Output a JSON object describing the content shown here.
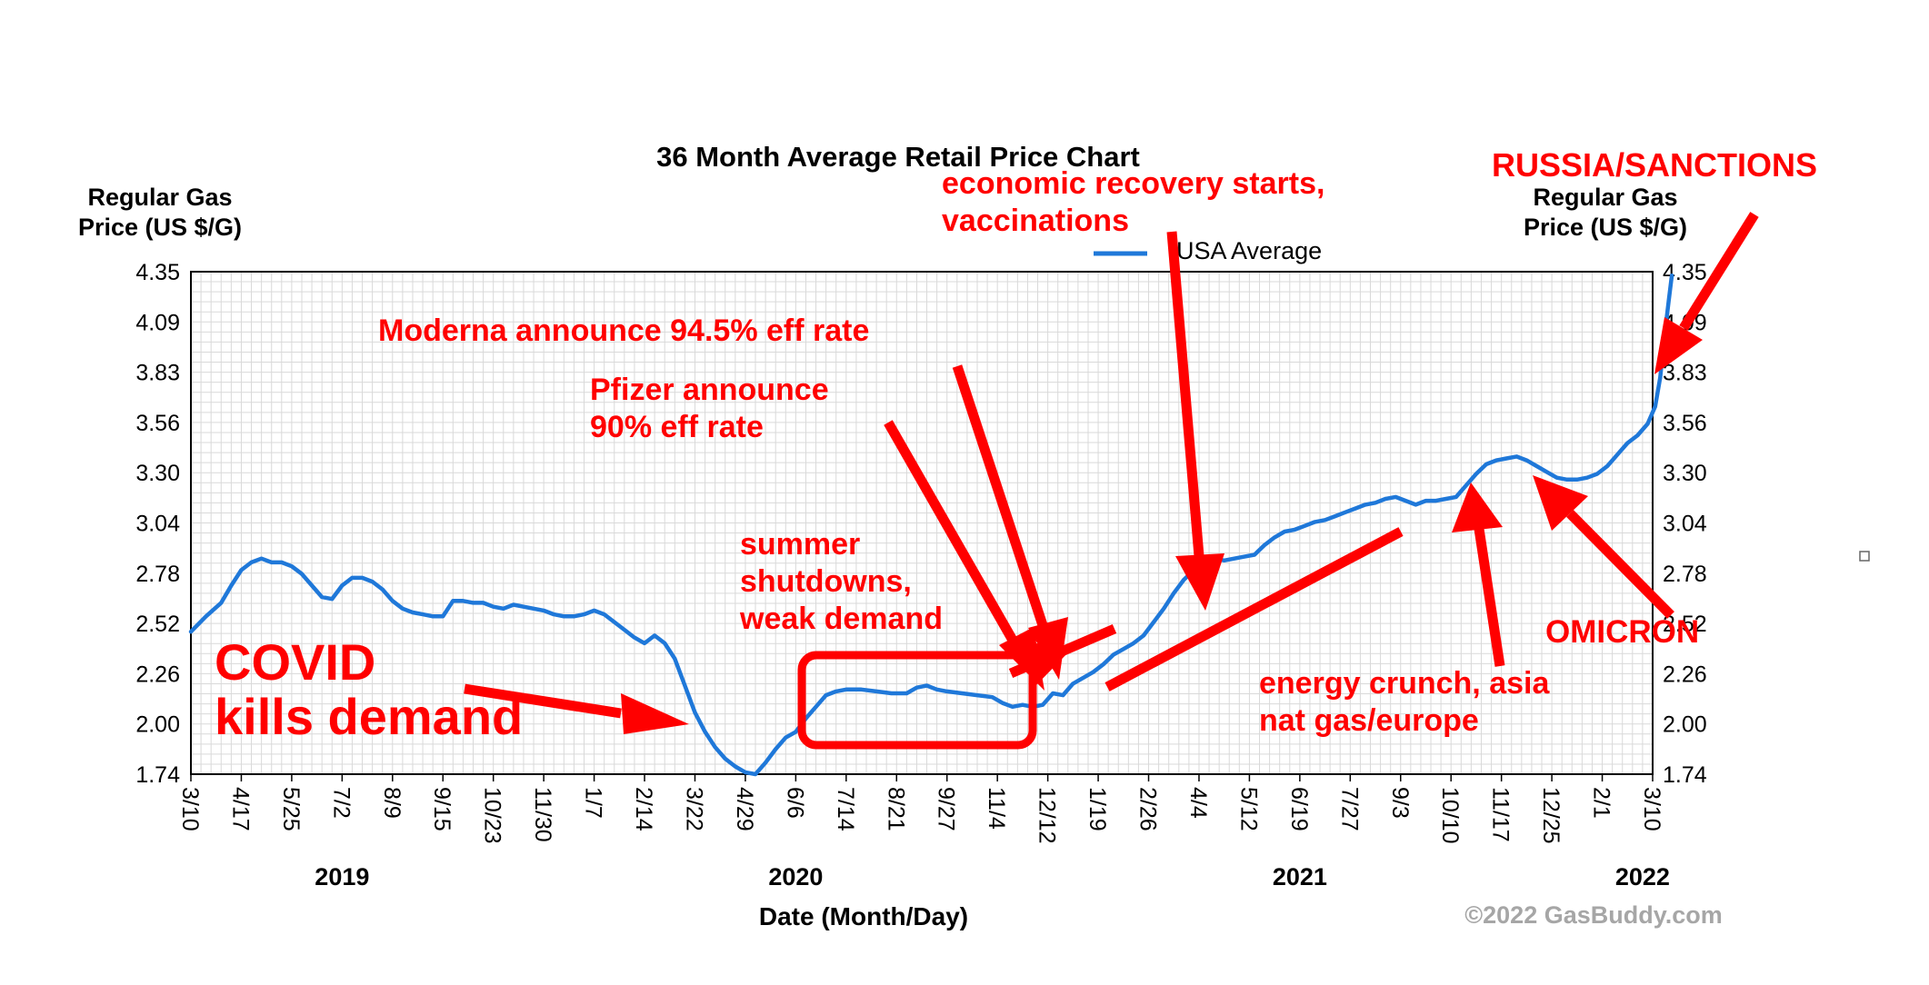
{
  "chart_data": {
    "type": "line",
    "title": "36 Month Average Retail Price Chart",
    "ylabel_left": [
      "Regular Gas",
      "Price (US $/G)"
    ],
    "ylabel_right": [
      "Regular Gas",
      "Price (US $/G)"
    ],
    "xlabel": "Date (Month/Day)",
    "ylim": [
      1.74,
      4.35
    ],
    "y_ticks": [
      "4.35",
      "4.09",
      "3.83",
      "3.56",
      "3.30",
      "3.04",
      "2.78",
      "2.52",
      "2.26",
      "2.00",
      "1.74"
    ],
    "x_ticks": [
      "3/10",
      "4/17",
      "5/25",
      "7/2",
      "8/9",
      "9/15",
      "10/23",
      "11/30",
      "1/7",
      "2/14",
      "3/22",
      "4/29",
      "6/6",
      "7/14",
      "8/21",
      "9/27",
      "11/4",
      "12/12",
      "1/19",
      "2/26",
      "4/4",
      "5/12",
      "6/19",
      "7/27",
      "9/3",
      "10/10",
      "11/17",
      "12/25",
      "2/1",
      "3/10"
    ],
    "years": [
      {
        "label": "2019",
        "tick_index": 3
      },
      {
        "label": "2020",
        "tick_index": 12
      },
      {
        "label": "2021",
        "tick_index": 22
      },
      {
        "label": "2022",
        "tick_index": 28.8
      }
    ],
    "legend": {
      "label": "USA Average",
      "color": "#1f78d9",
      "position": "top"
    },
    "grid": true,
    "series": [
      {
        "name": "USA Average",
        "color": "#1f78d9",
        "points": [
          [
            0,
            2.48
          ],
          [
            0.3,
            2.56
          ],
          [
            0.6,
            2.63
          ],
          [
            0.8,
            2.72
          ],
          [
            1.0,
            2.8
          ],
          [
            1.2,
            2.84
          ],
          [
            1.4,
            2.86
          ],
          [
            1.6,
            2.84
          ],
          [
            1.8,
            2.84
          ],
          [
            2.0,
            2.82
          ],
          [
            2.2,
            2.78
          ],
          [
            2.4,
            2.72
          ],
          [
            2.6,
            2.66
          ],
          [
            2.8,
            2.65
          ],
          [
            3.0,
            2.72
          ],
          [
            3.2,
            2.76
          ],
          [
            3.4,
            2.76
          ],
          [
            3.6,
            2.74
          ],
          [
            3.8,
            2.7
          ],
          [
            4.0,
            2.64
          ],
          [
            4.2,
            2.6
          ],
          [
            4.4,
            2.58
          ],
          [
            4.6,
            2.57
          ],
          [
            4.8,
            2.56
          ],
          [
            5.0,
            2.56
          ],
          [
            5.2,
            2.64
          ],
          [
            5.4,
            2.64
          ],
          [
            5.6,
            2.63
          ],
          [
            5.8,
            2.63
          ],
          [
            6.0,
            2.61
          ],
          [
            6.2,
            2.6
          ],
          [
            6.4,
            2.62
          ],
          [
            6.6,
            2.61
          ],
          [
            6.8,
            2.6
          ],
          [
            7.0,
            2.59
          ],
          [
            7.2,
            2.57
          ],
          [
            7.4,
            2.56
          ],
          [
            7.6,
            2.56
          ],
          [
            7.8,
            2.57
          ],
          [
            8.0,
            2.59
          ],
          [
            8.2,
            2.57
          ],
          [
            8.4,
            2.53
          ],
          [
            8.6,
            2.49
          ],
          [
            8.8,
            2.45
          ],
          [
            9.0,
            2.42
          ],
          [
            9.2,
            2.46
          ],
          [
            9.4,
            2.42
          ],
          [
            9.6,
            2.34
          ],
          [
            9.8,
            2.2
          ],
          [
            10.0,
            2.06
          ],
          [
            10.2,
            1.96
          ],
          [
            10.4,
            1.88
          ],
          [
            10.6,
            1.82
          ],
          [
            10.8,
            1.78
          ],
          [
            11.0,
            1.75
          ],
          [
            11.2,
            1.74
          ],
          [
            11.4,
            1.8
          ],
          [
            11.6,
            1.87
          ],
          [
            11.8,
            1.93
          ],
          [
            12.0,
            1.96
          ],
          [
            12.2,
            2.03
          ],
          [
            12.4,
            2.09
          ],
          [
            12.6,
            2.15
          ],
          [
            12.8,
            2.17
          ],
          [
            13.0,
            2.18
          ],
          [
            13.3,
            2.18
          ],
          [
            13.6,
            2.17
          ],
          [
            13.9,
            2.16
          ],
          [
            14.2,
            2.16
          ],
          [
            14.4,
            2.19
          ],
          [
            14.6,
            2.2
          ],
          [
            14.8,
            2.18
          ],
          [
            15.0,
            2.17
          ],
          [
            15.3,
            2.16
          ],
          [
            15.6,
            2.15
          ],
          [
            15.9,
            2.14
          ],
          [
            16.1,
            2.11
          ],
          [
            16.3,
            2.09
          ],
          [
            16.5,
            2.1
          ],
          [
            16.7,
            2.09
          ],
          [
            16.9,
            2.1
          ],
          [
            17.1,
            2.16
          ],
          [
            17.3,
            2.15
          ],
          [
            17.5,
            2.21
          ],
          [
            17.7,
            2.24
          ],
          [
            17.9,
            2.27
          ],
          [
            18.1,
            2.31
          ],
          [
            18.3,
            2.36
          ],
          [
            18.5,
            2.39
          ],
          [
            18.7,
            2.42
          ],
          [
            18.9,
            2.46
          ],
          [
            19.1,
            2.53
          ],
          [
            19.3,
            2.6
          ],
          [
            19.5,
            2.68
          ],
          [
            19.7,
            2.75
          ],
          [
            19.9,
            2.8
          ],
          [
            20.1,
            2.84
          ],
          [
            20.3,
            2.86
          ],
          [
            20.5,
            2.85
          ],
          [
            20.7,
            2.86
          ],
          [
            20.9,
            2.87
          ],
          [
            21.1,
            2.88
          ],
          [
            21.3,
            2.93
          ],
          [
            21.5,
            2.97
          ],
          [
            21.7,
            3.0
          ],
          [
            21.9,
            3.01
          ],
          [
            22.1,
            3.03
          ],
          [
            22.3,
            3.05
          ],
          [
            22.5,
            3.06
          ],
          [
            22.7,
            3.08
          ],
          [
            22.9,
            3.1
          ],
          [
            23.1,
            3.12
          ],
          [
            23.3,
            3.14
          ],
          [
            23.5,
            3.15
          ],
          [
            23.7,
            3.17
          ],
          [
            23.9,
            3.18
          ],
          [
            24.1,
            3.16
          ],
          [
            24.3,
            3.14
          ],
          [
            24.5,
            3.16
          ],
          [
            24.7,
            3.16
          ],
          [
            24.9,
            3.17
          ],
          [
            25.1,
            3.18
          ],
          [
            25.3,
            3.24
          ],
          [
            25.5,
            3.3
          ],
          [
            25.7,
            3.35
          ],
          [
            25.9,
            3.37
          ],
          [
            26.1,
            3.38
          ],
          [
            26.3,
            3.39
          ],
          [
            26.5,
            3.37
          ],
          [
            26.7,
            3.34
          ],
          [
            26.9,
            3.31
          ],
          [
            27.1,
            3.28
          ],
          [
            27.3,
            3.27
          ],
          [
            27.5,
            3.27
          ],
          [
            27.7,
            3.28
          ],
          [
            27.9,
            3.3
          ],
          [
            28.1,
            3.34
          ],
          [
            28.3,
            3.4
          ],
          [
            28.5,
            3.46
          ],
          [
            28.7,
            3.5
          ],
          [
            28.9,
            3.56
          ],
          [
            29.05,
            3.65
          ],
          [
            29.15,
            3.8
          ],
          [
            29.25,
            4.05
          ],
          [
            29.32,
            4.2
          ],
          [
            29.38,
            4.33
          ]
        ]
      }
    ],
    "annotations": [
      {
        "id": "covid",
        "lines": [
          "COVID",
          "kills demand"
        ]
      },
      {
        "id": "summer",
        "lines": [
          "summer",
          "shutdowns,",
          "weak demand"
        ]
      },
      {
        "id": "pfizer",
        "lines": [
          "Pfizer announce",
          "90% eff rate"
        ]
      },
      {
        "id": "moderna",
        "lines": [
          "Moderna announce 94.5% eff rate"
        ]
      },
      {
        "id": "recovery",
        "lines": [
          "economic recovery starts,",
          "vaccinations"
        ]
      },
      {
        "id": "russia",
        "lines": [
          "RUSSIA/SANCTIONS"
        ]
      },
      {
        "id": "omicron",
        "lines": [
          "OMICRON"
        ]
      },
      {
        "id": "energy",
        "lines": [
          "energy crunch, asia",
          "nat gas/europe"
        ]
      }
    ],
    "annotation_color": "#ff0000",
    "credit": "©2022 GasBuddy.com"
  }
}
